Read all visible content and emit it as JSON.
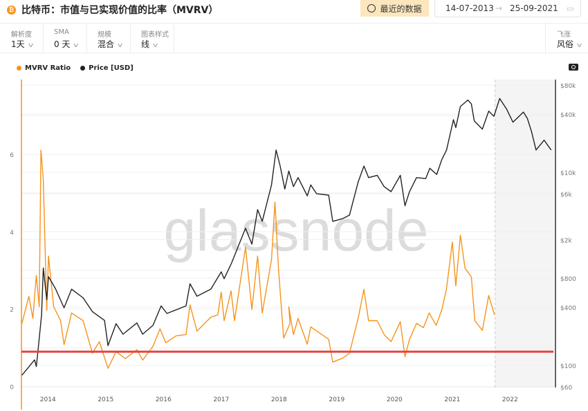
{
  "header": {
    "title": "比特币：市值与已实现价值的比率（MVRV）",
    "recent_label": "最近的数据",
    "date_from": "14-07-2013",
    "date_arrow": "→",
    "date_to": "25-09-2021"
  },
  "controls": [
    {
      "label": "解析度",
      "value": "1天"
    },
    {
      "label": "SMA",
      "value": "0 天"
    },
    {
      "label": "规模",
      "value": "混合"
    },
    {
      "label": "图表样式",
      "value": "线"
    }
  ],
  "right_control": {
    "label": "飞涨",
    "value": "风俗"
  },
  "watermark": "glassnode",
  "colors": {
    "mvrv": "#f7931a",
    "price": "#222222",
    "threshold": "#e8423f",
    "shade": "#f4f4f4"
  },
  "chart_data": {
    "type": "line",
    "title": "比特币：市值与已实现价值的比率（MVRV）",
    "legend": [
      "MVRV Ratio",
      "Price [USD]"
    ],
    "legend_position": "top-left",
    "x_ticks": [
      "2014",
      "2015",
      "2016",
      "2017",
      "2018",
      "2019",
      "2020",
      "2021",
      "2022"
    ],
    "xlim": [
      2013.53,
      2022.75
    ],
    "y_left": {
      "ticks": [
        "0",
        "2",
        "4",
        "6"
      ],
      "lim": [
        0,
        7.4
      ]
    },
    "y_right": {
      "scale": "log",
      "ticks": [
        "$60",
        "$100",
        "$400",
        "$800",
        "$2k",
        "$6k",
        "$10k",
        "$40k",
        "$80k"
      ],
      "tick_values": [
        60,
        100,
        400,
        800,
        2000,
        6000,
        10000,
        40000,
        80000
      ]
    },
    "threshold_line": 0.9,
    "forecast_region_start": 2021.74,
    "series": [
      {
        "name": "MVRV Ratio",
        "axis": "left",
        "points": [
          [
            2013.55,
            1.63
          ],
          [
            2013.67,
            2.33
          ],
          [
            2013.74,
            1.76
          ],
          [
            2013.8,
            2.87
          ],
          [
            2013.85,
            2.06
          ],
          [
            2013.88,
            6.11
          ],
          [
            2013.92,
            5.34
          ],
          [
            2013.98,
            1.97
          ],
          [
            2014.01,
            3.37
          ],
          [
            2014.1,
            2.06
          ],
          [
            2014.22,
            1.7
          ],
          [
            2014.28,
            1.08
          ],
          [
            2014.41,
            1.9
          ],
          [
            2014.61,
            1.7
          ],
          [
            2014.77,
            0.86
          ],
          [
            2014.89,
            1.16
          ],
          [
            2015.04,
            0.47
          ],
          [
            2015.18,
            0.9
          ],
          [
            2015.34,
            0.72
          ],
          [
            2015.54,
            0.95
          ],
          [
            2015.64,
            0.68
          ],
          [
            2015.82,
            1.04
          ],
          [
            2015.94,
            1.49
          ],
          [
            2016.04,
            1.13
          ],
          [
            2016.22,
            1.31
          ],
          [
            2016.39,
            1.34
          ],
          [
            2016.46,
            2.11
          ],
          [
            2016.58,
            1.43
          ],
          [
            2016.82,
            1.79
          ],
          [
            2016.94,
            1.85
          ],
          [
            2017.0,
            2.44
          ],
          [
            2017.05,
            1.7
          ],
          [
            2017.17,
            2.47
          ],
          [
            2017.23,
            1.7
          ],
          [
            2017.42,
            3.6
          ],
          [
            2017.53,
            1.99
          ],
          [
            2017.63,
            3.37
          ],
          [
            2017.71,
            1.9
          ],
          [
            2017.87,
            3.28
          ],
          [
            2017.93,
            4.77
          ],
          [
            2017.99,
            3.06
          ],
          [
            2018.08,
            1.25
          ],
          [
            2018.19,
            1.63
          ],
          [
            2018.17,
            2.06
          ],
          [
            2018.25,
            1.34
          ],
          [
            2018.33,
            1.76
          ],
          [
            2018.49,
            1.09
          ],
          [
            2018.55,
            1.54
          ],
          [
            2018.86,
            1.22
          ],
          [
            2018.93,
            0.63
          ],
          [
            2019.1,
            0.73
          ],
          [
            2019.22,
            0.86
          ],
          [
            2019.37,
            1.76
          ],
          [
            2019.47,
            2.51
          ],
          [
            2019.55,
            1.7
          ],
          [
            2019.7,
            1.7
          ],
          [
            2019.82,
            1.34
          ],
          [
            2019.94,
            1.16
          ],
          [
            2020.1,
            1.67
          ],
          [
            2020.18,
            0.77
          ],
          [
            2020.26,
            1.22
          ],
          [
            2020.38,
            1.63
          ],
          [
            2020.5,
            1.52
          ],
          [
            2020.6,
            1.9
          ],
          [
            2020.72,
            1.58
          ],
          [
            2020.82,
            1.99
          ],
          [
            2020.9,
            2.53
          ],
          [
            2021.0,
            3.73
          ],
          [
            2021.06,
            2.6
          ],
          [
            2021.14,
            3.91
          ],
          [
            2021.22,
            3.06
          ],
          [
            2021.33,
            2.83
          ],
          [
            2021.39,
            1.7
          ],
          [
            2021.52,
            1.45
          ],
          [
            2021.63,
            2.35
          ],
          [
            2021.73,
            1.85
          ]
        ]
      },
      {
        "name": "Price [USD]",
        "axis": "right",
        "points": [
          [
            2013.55,
            79
          ],
          [
            2013.77,
            114
          ],
          [
            2013.8,
            97
          ],
          [
            2013.83,
            146
          ],
          [
            2013.89,
            333
          ],
          [
            2013.92,
            1020
          ],
          [
            2013.98,
            480
          ],
          [
            2014.01,
            830
          ],
          [
            2014.13,
            625
          ],
          [
            2014.28,
            394
          ],
          [
            2014.41,
            615
          ],
          [
            2014.61,
            500
          ],
          [
            2014.77,
            360
          ],
          [
            2014.98,
            292
          ],
          [
            2015.04,
            160
          ],
          [
            2015.18,
            270
          ],
          [
            2015.3,
            210
          ],
          [
            2015.54,
            275
          ],
          [
            2015.64,
            210
          ],
          [
            2015.82,
            260
          ],
          [
            2015.96,
            413
          ],
          [
            2016.06,
            345
          ],
          [
            2016.39,
            413
          ],
          [
            2016.46,
            700
          ],
          [
            2016.58,
            520
          ],
          [
            2016.82,
            615
          ],
          [
            2017.0,
            930
          ],
          [
            2017.05,
            790
          ],
          [
            2017.18,
            1150
          ],
          [
            2017.42,
            2630
          ],
          [
            2017.53,
            1800
          ],
          [
            2017.63,
            4100
          ],
          [
            2017.71,
            3100
          ],
          [
            2017.87,
            7400
          ],
          [
            2017.95,
            17000
          ],
          [
            2018.02,
            11600
          ],
          [
            2018.1,
            6700
          ],
          [
            2018.17,
            10300
          ],
          [
            2018.25,
            7100
          ],
          [
            2018.33,
            8800
          ],
          [
            2018.49,
            5700
          ],
          [
            2018.55,
            7400
          ],
          [
            2018.65,
            6000
          ],
          [
            2018.86,
            5800
          ],
          [
            2018.93,
            3100
          ],
          [
            2019.1,
            3300
          ],
          [
            2019.22,
            3600
          ],
          [
            2019.37,
            7900
          ],
          [
            2019.47,
            11600
          ],
          [
            2019.55,
            8800
          ],
          [
            2019.7,
            9300
          ],
          [
            2019.82,
            7100
          ],
          [
            2019.94,
            6300
          ],
          [
            2020.1,
            9300
          ],
          [
            2020.18,
            4500
          ],
          [
            2020.26,
            6300
          ],
          [
            2020.38,
            8800
          ],
          [
            2020.54,
            8600
          ],
          [
            2020.61,
            11000
          ],
          [
            2020.73,
            9500
          ],
          [
            2020.82,
            13600
          ],
          [
            2020.9,
            17000
          ],
          [
            2021.02,
            35000
          ],
          [
            2021.06,
            29000
          ],
          [
            2021.14,
            48000
          ],
          [
            2021.27,
            56000
          ],
          [
            2021.33,
            51000
          ],
          [
            2021.38,
            34000
          ],
          [
            2021.52,
            28000
          ],
          [
            2021.63,
            43000
          ],
          [
            2021.72,
            38000
          ],
          [
            2021.82,
            58000
          ],
          [
            2021.94,
            45000
          ],
          [
            2022.05,
            33000
          ],
          [
            2022.23,
            42000
          ],
          [
            2022.3,
            36000
          ],
          [
            2022.37,
            26500
          ],
          [
            2022.45,
            17000
          ],
          [
            2022.59,
            21500
          ],
          [
            2022.71,
            17000
          ]
        ]
      }
    ]
  }
}
